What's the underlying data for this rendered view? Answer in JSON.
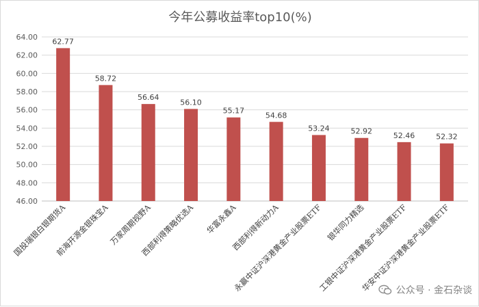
{
  "chart_data": {
    "type": "bar",
    "title": "今年公募收益率top10(%)",
    "categories": [
      "国投瑞银白银期货A",
      "前海开源金银珠宝A",
      "万家周期视野A",
      "西部利得策略优选A",
      "华富永鑫A",
      "西部利得新动力A",
      "永赢中证沪深港黄金产业股票ETF",
      "银华同力精选",
      "工银中证沪深港黄金产业股票ETF",
      "华安中证沪深港黄金产业股票ETF"
    ],
    "values": [
      62.77,
      58.72,
      56.64,
      56.1,
      55.17,
      54.68,
      53.24,
      52.92,
      52.46,
      52.32
    ],
    "data_labels": [
      "62.77",
      "58.72",
      "56.64",
      "56.10",
      "55.17",
      "54.68",
      "53.24",
      "52.92",
      "52.46",
      "52.32"
    ],
    "ylim": [
      46,
      64
    ],
    "yticks": [
      "46.00",
      "48.00",
      "50.00",
      "52.00",
      "54.00",
      "56.00",
      "58.00",
      "60.00",
      "62.00",
      "64.00"
    ],
    "ytick_values": [
      46,
      48,
      50,
      52,
      54,
      56,
      58,
      60,
      62,
      64
    ],
    "grid": true,
    "legend": "none",
    "bar_color": "#c0504d",
    "xlabel": "",
    "ylabel": ""
  },
  "watermark": {
    "text": "公众号 · 金石杂谈",
    "icon": "wechat-icon"
  }
}
